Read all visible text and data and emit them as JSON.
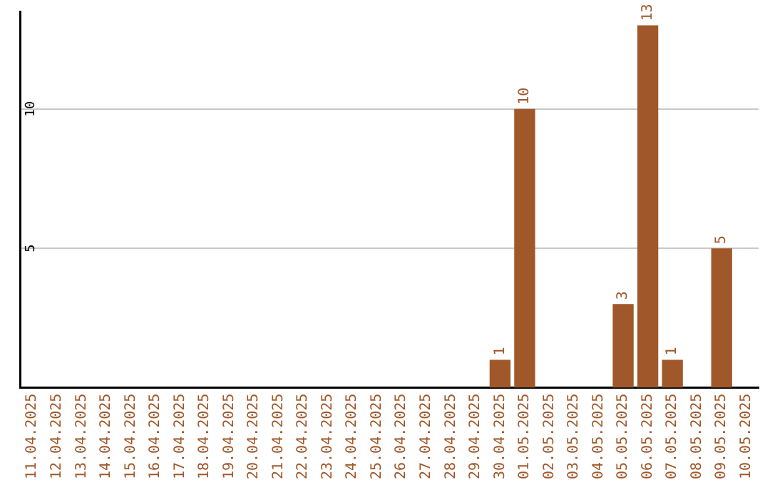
{
  "chart_data": {
    "type": "bar",
    "categories": [
      "11.04.2025",
      "12.04.2025",
      "13.04.2025",
      "14.04.2025",
      "15.04.2025",
      "16.04.2025",
      "17.04.2025",
      "18.04.2025",
      "19.04.2025",
      "20.04.2025",
      "21.04.2025",
      "22.04.2025",
      "23.04.2025",
      "24.04.2025",
      "25.04.2025",
      "26.04.2025",
      "27.04.2025",
      "28.04.2025",
      "29.04.2025",
      "30.04.2025",
      "01.05.2025",
      "02.05.2025",
      "03.05.2025",
      "04.05.2025",
      "05.05.2025",
      "06.05.2025",
      "07.05.2025",
      "08.05.2025",
      "09.05.2025",
      "10.05.2025"
    ],
    "values": [
      0,
      0,
      0,
      0,
      0,
      0,
      0,
      0,
      0,
      0,
      0,
      0,
      0,
      0,
      0,
      0,
      0,
      0,
      0,
      1,
      10,
      0,
      0,
      0,
      3,
      13,
      1,
      0,
      5,
      0
    ],
    "value_labels": [
      null,
      null,
      null,
      null,
      null,
      null,
      null,
      null,
      null,
      null,
      null,
      null,
      null,
      null,
      null,
      null,
      null,
      null,
      null,
      "1",
      "10",
      null,
      null,
      null,
      "3",
      "13",
      "1",
      null,
      "5",
      null
    ],
    "color": "#a0582a",
    "ylim": [
      0,
      13.5
    ],
    "yticks": [
      5,
      10
    ],
    "grid": "y",
    "legend": false
  }
}
